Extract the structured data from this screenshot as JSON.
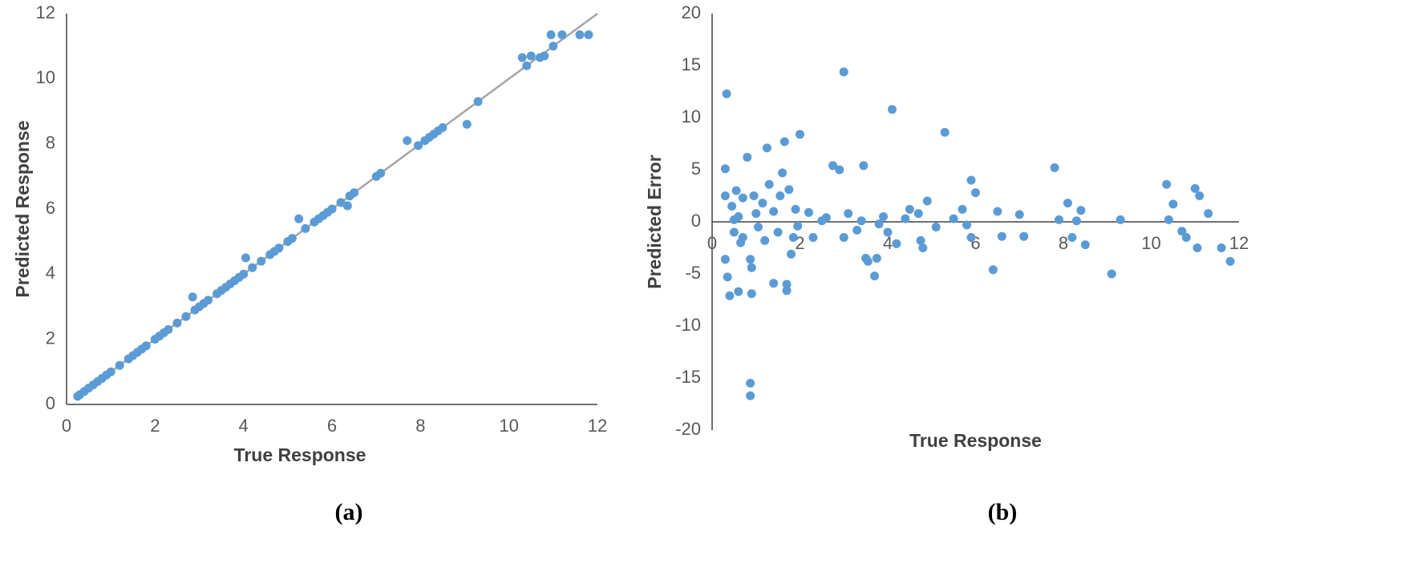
{
  "chart_data": [
    {
      "type": "scatter",
      "caption": "(a)",
      "xlabel": "True Response",
      "ylabel": "Predicted Response",
      "color": "#5b9bd5",
      "x": [
        0.25,
        0.3,
        0.4,
        0.5,
        0.6,
        0.7,
        0.8,
        0.9,
        1.0,
        1.2,
        1.4,
        1.5,
        1.6,
        1.7,
        1.8,
        2.0,
        2.1,
        2.2,
        2.3,
        2.5,
        2.7,
        2.85,
        2.9,
        3.0,
        3.1,
        3.2,
        3.4,
        3.5,
        3.6,
        3.7,
        3.8,
        3.9,
        4.0,
        4.05,
        4.2,
        4.4,
        4.6,
        4.7,
        4.8,
        5.0,
        5.1,
        5.25,
        5.4,
        5.6,
        5.7,
        5.8,
        5.9,
        6.0,
        6.2,
        6.35,
        6.4,
        6.5,
        7.0,
        7.1,
        7.7,
        7.95,
        8.1,
        8.2,
        8.3,
        8.4,
        8.5,
        9.05,
        9.3,
        10.3,
        10.4,
        10.5,
        10.7,
        10.8,
        10.95,
        11.0,
        11.2,
        11.6,
        11.8
      ],
      "values": [
        0.25,
        0.3,
        0.4,
        0.5,
        0.6,
        0.7,
        0.8,
        0.9,
        1.0,
        1.2,
        1.4,
        1.5,
        1.6,
        1.7,
        1.8,
        2.0,
        2.1,
        2.2,
        2.3,
        2.5,
        2.7,
        3.3,
        2.9,
        3.0,
        3.1,
        3.2,
        3.4,
        3.5,
        3.6,
        3.7,
        3.8,
        3.9,
        4.0,
        4.5,
        4.2,
        4.4,
        4.6,
        4.7,
        4.8,
        5.0,
        5.1,
        5.7,
        5.4,
        5.6,
        5.7,
        5.8,
        5.9,
        6.0,
        6.2,
        6.1,
        6.4,
        6.5,
        7.0,
        7.1,
        8.1,
        7.95,
        8.1,
        8.2,
        8.3,
        8.4,
        8.5,
        8.6,
        9.3,
        10.65,
        10.4,
        10.7,
        10.65,
        10.7,
        11.35,
        11.0,
        11.35,
        11.35,
        11.35
      ],
      "trendline": {
        "x": [
          0.25,
          12
        ],
        "values": [
          0.25,
          12
        ],
        "color": "#a5a5a5"
      },
      "xlim": [
        0,
        12
      ],
      "ylim": [
        0,
        12
      ],
      "xticks": [
        0,
        2,
        4,
        6,
        8,
        10,
        12
      ],
      "yticks": [
        0,
        2,
        4,
        6,
        8,
        10,
        12
      ],
      "xaxis_crossing": 0
    },
    {
      "type": "scatter",
      "caption": "(b)",
      "xlabel": "True Response",
      "ylabel": "Predicted Error",
      "color": "#5b9bd5",
      "x": [
        0.33,
        0.3,
        0.3,
        0.3,
        0.35,
        0.4,
        0.45,
        0.5,
        0.55,
        0.6,
        0.6,
        0.65,
        0.7,
        0.7,
        0.8,
        0.87,
        0.87,
        0.87,
        0.9,
        0.9,
        0.95,
        1.0,
        1.05,
        1.15,
        1.25,
        1.3,
        1.4,
        1.4,
        1.5,
        1.55,
        1.65,
        1.6,
        1.7,
        1.7,
        1.75,
        1.8,
        1.85,
        1.9,
        1.95,
        2.0,
        2.2,
        2.3,
        2.5,
        2.75,
        2.9,
        3.0,
        3.0,
        3.1,
        3.3,
        3.45,
        3.5,
        3.55,
        3.7,
        3.75,
        3.9,
        4.0,
        4.1,
        4.2,
        4.5,
        4.7,
        4.75,
        4.8,
        4.9,
        5.1,
        5.3,
        5.5,
        5.7,
        5.9,
        6.0,
        5.9,
        6.5,
        6.6,
        6.4,
        7.0,
        7.1,
        7.8,
        7.9,
        8.1,
        8.2,
        8.4,
        8.5,
        9.1,
        9.3,
        10.35,
        10.4,
        10.5,
        10.7,
        10.8,
        11.0,
        11.1,
        11.3,
        11.05,
        11.6,
        11.8,
        0.5,
        1.2,
        2.6,
        3.4,
        3.8,
        4.4,
        5.8,
        8.3
      ],
      "values": [
        12.3,
        5.1,
        2.5,
        -3.6,
        -5.3,
        -7.1,
        1.5,
        -1.0,
        3.0,
        -6.7,
        0.5,
        -2.0,
        2.3,
        -1.5,
        6.2,
        -15.5,
        -16.7,
        -3.6,
        -6.9,
        -4.4,
        2.5,
        0.8,
        -0.5,
        1.8,
        7.1,
        3.6,
        -5.9,
        1.0,
        -1.0,
        2.5,
        7.7,
        4.7,
        -6.0,
        -6.6,
        3.1,
        -3.1,
        -1.5,
        1.2,
        -0.4,
        8.4,
        0.9,
        -1.5,
        0.1,
        5.4,
        5.0,
        14.4,
        -1.5,
        0.8,
        -0.8,
        5.4,
        -3.5,
        -3.8,
        -5.2,
        -3.5,
        0.5,
        -1.0,
        10.8,
        -2.1,
        1.2,
        0.8,
        -1.8,
        -2.5,
        2.0,
        -0.5,
        8.6,
        0.3,
        1.2,
        4.0,
        2.8,
        -1.5,
        1.0,
        -1.4,
        -4.6,
        0.7,
        -1.4,
        5.2,
        0.2,
        1.8,
        -1.5,
        1.1,
        -2.2,
        -5.0,
        0.2,
        3.6,
        0.2,
        1.7,
        -0.9,
        -1.5,
        3.2,
        2.5,
        0.8,
        -2.5,
        -2.5,
        -3.8,
        0.2,
        -1.8,
        0.4,
        0.1,
        -0.2,
        0.3,
        -0.3,
        0.1
      ],
      "xlim": [
        0,
        12
      ],
      "ylim": [
        -20,
        20
      ],
      "xticks": [
        0,
        2,
        4,
        6,
        8,
        10,
        12
      ],
      "yticks": [
        -20,
        -15,
        -10,
        -5,
        0,
        5,
        10,
        15,
        20
      ],
      "xaxis_crossing": 0
    }
  ]
}
